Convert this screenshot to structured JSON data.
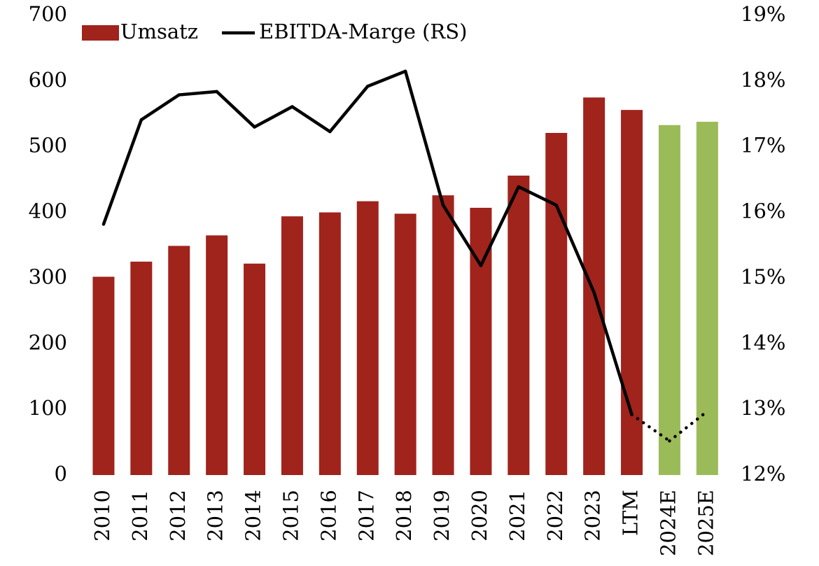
{
  "chart_data": {
    "type": "bar_line",
    "categories": [
      "2010",
      "2011",
      "2012",
      "2013",
      "2014",
      "2015",
      "2016",
      "2017",
      "2018",
      "2019",
      "2020",
      "2021",
      "2022",
      "2023",
      "LTM",
      "2024E",
      "2025E"
    ],
    "series": [
      {
        "name": "Umsatz",
        "type": "bar",
        "color": "#a0231c",
        "colors": [
          "#a0231c",
          "#a0231c",
          "#a0231c",
          "#a0231c",
          "#a0231c",
          "#a0231c",
          "#a0231c",
          "#a0231c",
          "#a0231c",
          "#a0231c",
          "#a0231c",
          "#a0231c",
          "#a0231c",
          "#a0231c",
          "#a0231c",
          "#9bbb59",
          "#9bbb59"
        ],
        "values": [
          302,
          325,
          349,
          365,
          322,
          394,
          400,
          417,
          398,
          426,
          407,
          456,
          521,
          575,
          556,
          533,
          538
        ]
      },
      {
        "name": "EBITDA-Marge (RS)",
        "type": "line",
        "axis": "y2",
        "color": "#000000",
        "dash": [
          "solid",
          "solid",
          "solid",
          "solid",
          "solid",
          "solid",
          "solid",
          "solid",
          "solid",
          "solid",
          "solid",
          "solid",
          "solid",
          "solid",
          "solid",
          "dotted",
          "dotted"
        ],
        "values": [
          15.82,
          17.41,
          17.79,
          17.84,
          17.3,
          17.61,
          17.23,
          17.92,
          18.15,
          16.11,
          15.19,
          16.39,
          16.11,
          14.78,
          12.92,
          12.52,
          12.97
        ]
      }
    ],
    "ylim": [
      0,
      700
    ],
    "yticks": [
      0,
      100,
      200,
      300,
      400,
      500,
      600,
      700
    ],
    "y2lim": [
      12,
      19
    ],
    "y2ticks": [
      {
        "value": 12,
        "label": "12%"
      },
      {
        "value": 13,
        "label": "13%"
      },
      {
        "value": 14,
        "label": "14%"
      },
      {
        "value": 15,
        "label": "15%"
      },
      {
        "value": 16,
        "label": "16%"
      },
      {
        "value": 17,
        "label": "17%"
      },
      {
        "value": 18,
        "label": "18%"
      },
      {
        "value": 19,
        "label": "19%"
      }
    ],
    "grid": false,
    "legend": "top-left"
  }
}
